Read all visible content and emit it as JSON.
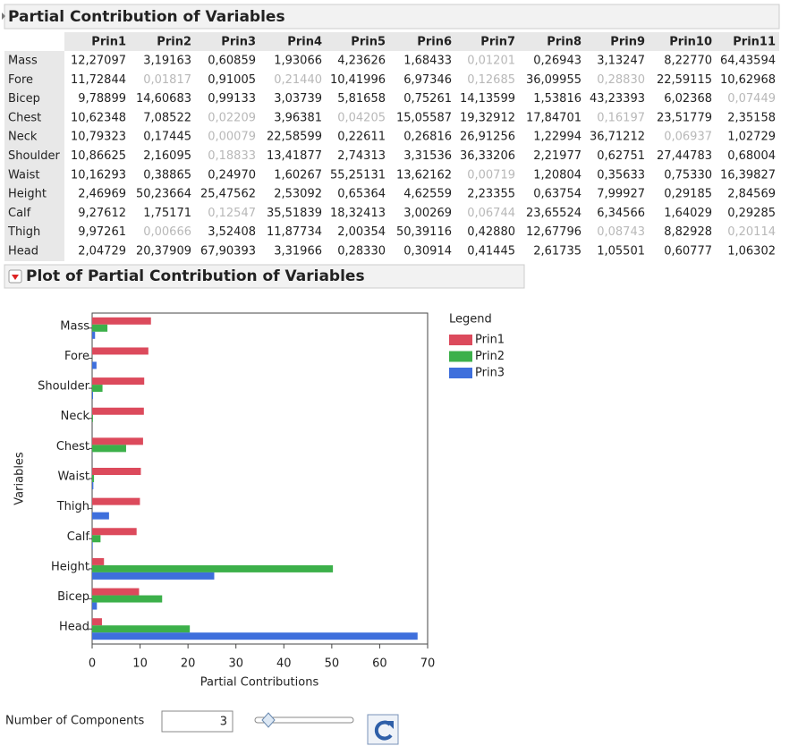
{
  "table": {
    "title": "Partial Contribution of Variables",
    "columns": [
      "Prin1",
      "Prin2",
      "Prin3",
      "Prin4",
      "Prin5",
      "Prin6",
      "Prin7",
      "Prin8",
      "Prin9",
      "Prin10",
      "Prin11"
    ],
    "rows": [
      {
        "label": "Mass",
        "cells": [
          "12,27097",
          "3,19163",
          "0,60859",
          "1,93066",
          "4,23626",
          "1,68433",
          "0,01201",
          "0,26943",
          "3,13247",
          "8,22770",
          "64,43594"
        ]
      },
      {
        "label": "Fore",
        "cells": [
          "11,72844",
          "0,01817",
          "0,91005",
          "0,21440",
          "10,41996",
          "6,97346",
          "0,12685",
          "36,09955",
          "0,28830",
          "22,59115",
          "10,62968"
        ]
      },
      {
        "label": "Bicep",
        "cells": [
          "9,78899",
          "14,60683",
          "0,99133",
          "3,03739",
          "5,81658",
          "0,75261",
          "14,13599",
          "1,53816",
          "43,23393",
          "6,02368",
          "0,07449"
        ]
      },
      {
        "label": "Chest",
        "cells": [
          "10,62348",
          "7,08522",
          "0,02209",
          "3,96381",
          "0,04205",
          "15,05587",
          "19,32912",
          "17,84701",
          "0,16197",
          "23,51779",
          "2,35158"
        ]
      },
      {
        "label": "Neck",
        "cells": [
          "10,79323",
          "0,17445",
          "0,00079",
          "22,58599",
          "0,22611",
          "0,26816",
          "26,91256",
          "1,22994",
          "36,71212",
          "0,06937",
          "1,02729"
        ]
      },
      {
        "label": "Shoulder",
        "cells": [
          "10,86625",
          "2,16095",
          "0,18833",
          "13,41877",
          "2,74313",
          "3,31536",
          "36,33206",
          "2,21977",
          "0,62751",
          "27,44783",
          "0,68004"
        ]
      },
      {
        "label": "Waist",
        "cells": [
          "10,16293",
          "0,38865",
          "0,24970",
          "1,60267",
          "55,25131",
          "13,62162",
          "0,00719",
          "1,20804",
          "0,35633",
          "0,75330",
          "16,39827"
        ]
      },
      {
        "label": "Height",
        "cells": [
          "2,46969",
          "50,23664",
          "25,47562",
          "2,53092",
          "0,65364",
          "4,62559",
          "2,23355",
          "0,63754",
          "7,99927",
          "0,29185",
          "2,84569"
        ]
      },
      {
        "label": "Calf",
        "cells": [
          "9,27612",
          "1,75171",
          "0,12547",
          "35,51839",
          "18,32413",
          "3,00269",
          "0,06744",
          "23,65524",
          "6,34566",
          "1,64029",
          "0,29285"
        ]
      },
      {
        "label": "Thigh",
        "cells": [
          "9,97261",
          "0,00666",
          "3,52408",
          "11,87734",
          "2,00354",
          "50,39116",
          "0,42880",
          "12,67796",
          "0,08743",
          "8,82928",
          "0,20114"
        ]
      },
      {
        "label": "Head",
        "cells": [
          "2,04729",
          "20,37909",
          "67,90393",
          "3,31966",
          "0,28330",
          "0,30914",
          "0,41445",
          "2,61735",
          "1,05501",
          "0,60777",
          "1,06302"
        ]
      }
    ],
    "dimmed_cells": [
      [
        0,
        6
      ],
      [
        1,
        1
      ],
      [
        1,
        3
      ],
      [
        1,
        6
      ],
      [
        1,
        8
      ],
      [
        2,
        10
      ],
      [
        3,
        2
      ],
      [
        3,
        4
      ],
      [
        3,
        8
      ],
      [
        4,
        2
      ],
      [
        4,
        9
      ],
      [
        5,
        2
      ],
      [
        6,
        6
      ],
      [
        8,
        2
      ],
      [
        8,
        6
      ],
      [
        9,
        1
      ],
      [
        9,
        8
      ],
      [
        9,
        10
      ]
    ]
  },
  "chart_data": {
    "type": "bar",
    "orientation": "horizontal",
    "title": "Plot of Partial Contribution of Variables",
    "x_label": "Partial Contributions",
    "y_label": "Variables",
    "legend_title": "Legend",
    "legend": "right",
    "categories": [
      "Mass",
      "Fore",
      "Shoulder",
      "Neck",
      "Chest",
      "Waist",
      "Thigh",
      "Calf",
      "Height",
      "Bicep",
      "Head"
    ],
    "series": [
      {
        "name": "Prin1",
        "color": "#dc4a5c",
        "values": [
          12.27097,
          11.72844,
          10.86625,
          10.79323,
          10.62348,
          10.16293,
          9.97261,
          9.27612,
          2.46969,
          9.78899,
          2.04729
        ]
      },
      {
        "name": "Prin2",
        "color": "#3cb04a",
        "values": [
          3.19163,
          0.01817,
          2.16095,
          0.17445,
          7.08522,
          0.38865,
          0.00666,
          1.75171,
          50.23664,
          14.60683,
          20.37909
        ]
      },
      {
        "name": "Prin3",
        "color": "#3e6fdc",
        "values": [
          0.60859,
          0.91005,
          0.18833,
          0.00079,
          0.02209,
          0.2497,
          3.52408,
          0.12547,
          25.47562,
          0.99133,
          67.90393
        ]
      }
    ],
    "xlim": [
      0,
      70
    ],
    "xticks": [
      0,
      10,
      20,
      30,
      40,
      50,
      60,
      70
    ]
  },
  "controls": {
    "label": "Number of Components",
    "value": "3"
  }
}
